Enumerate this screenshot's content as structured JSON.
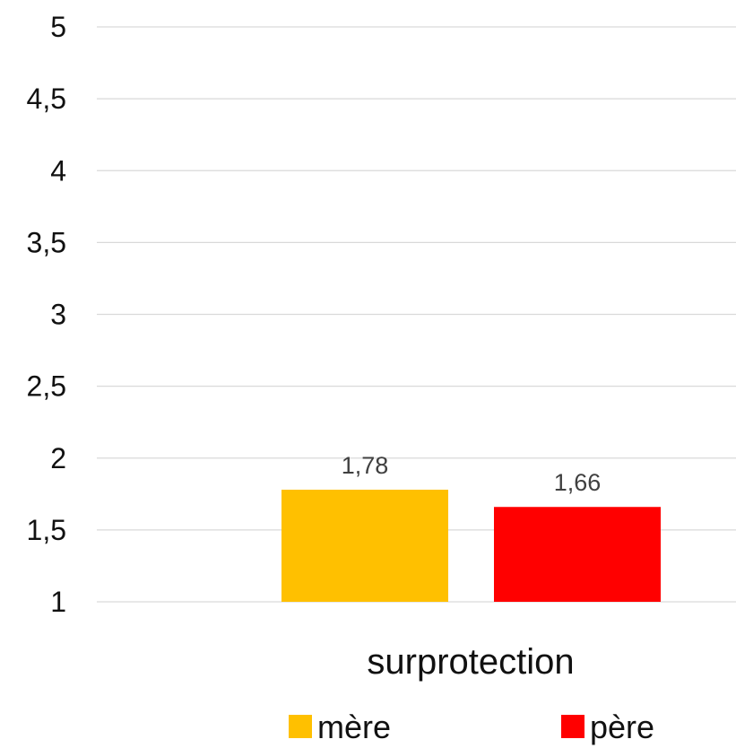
{
  "chart_data": {
    "type": "bar",
    "categories": [
      "surprotection"
    ],
    "series": [
      {
        "name": "mère",
        "values": [
          1.78
        ],
        "color": "#FFC000"
      },
      {
        "name": "père",
        "values": [
          1.66
        ],
        "color": "#FF0000"
      }
    ],
    "ylim": [
      1,
      5
    ],
    "yticks": [
      "1",
      "1,5",
      "2",
      "2,5",
      "3",
      "3,5",
      "4",
      "4,5",
      "5"
    ],
    "data_labels": [
      "1,78",
      "1,66"
    ],
    "grid": true,
    "legend": "bottom"
  }
}
